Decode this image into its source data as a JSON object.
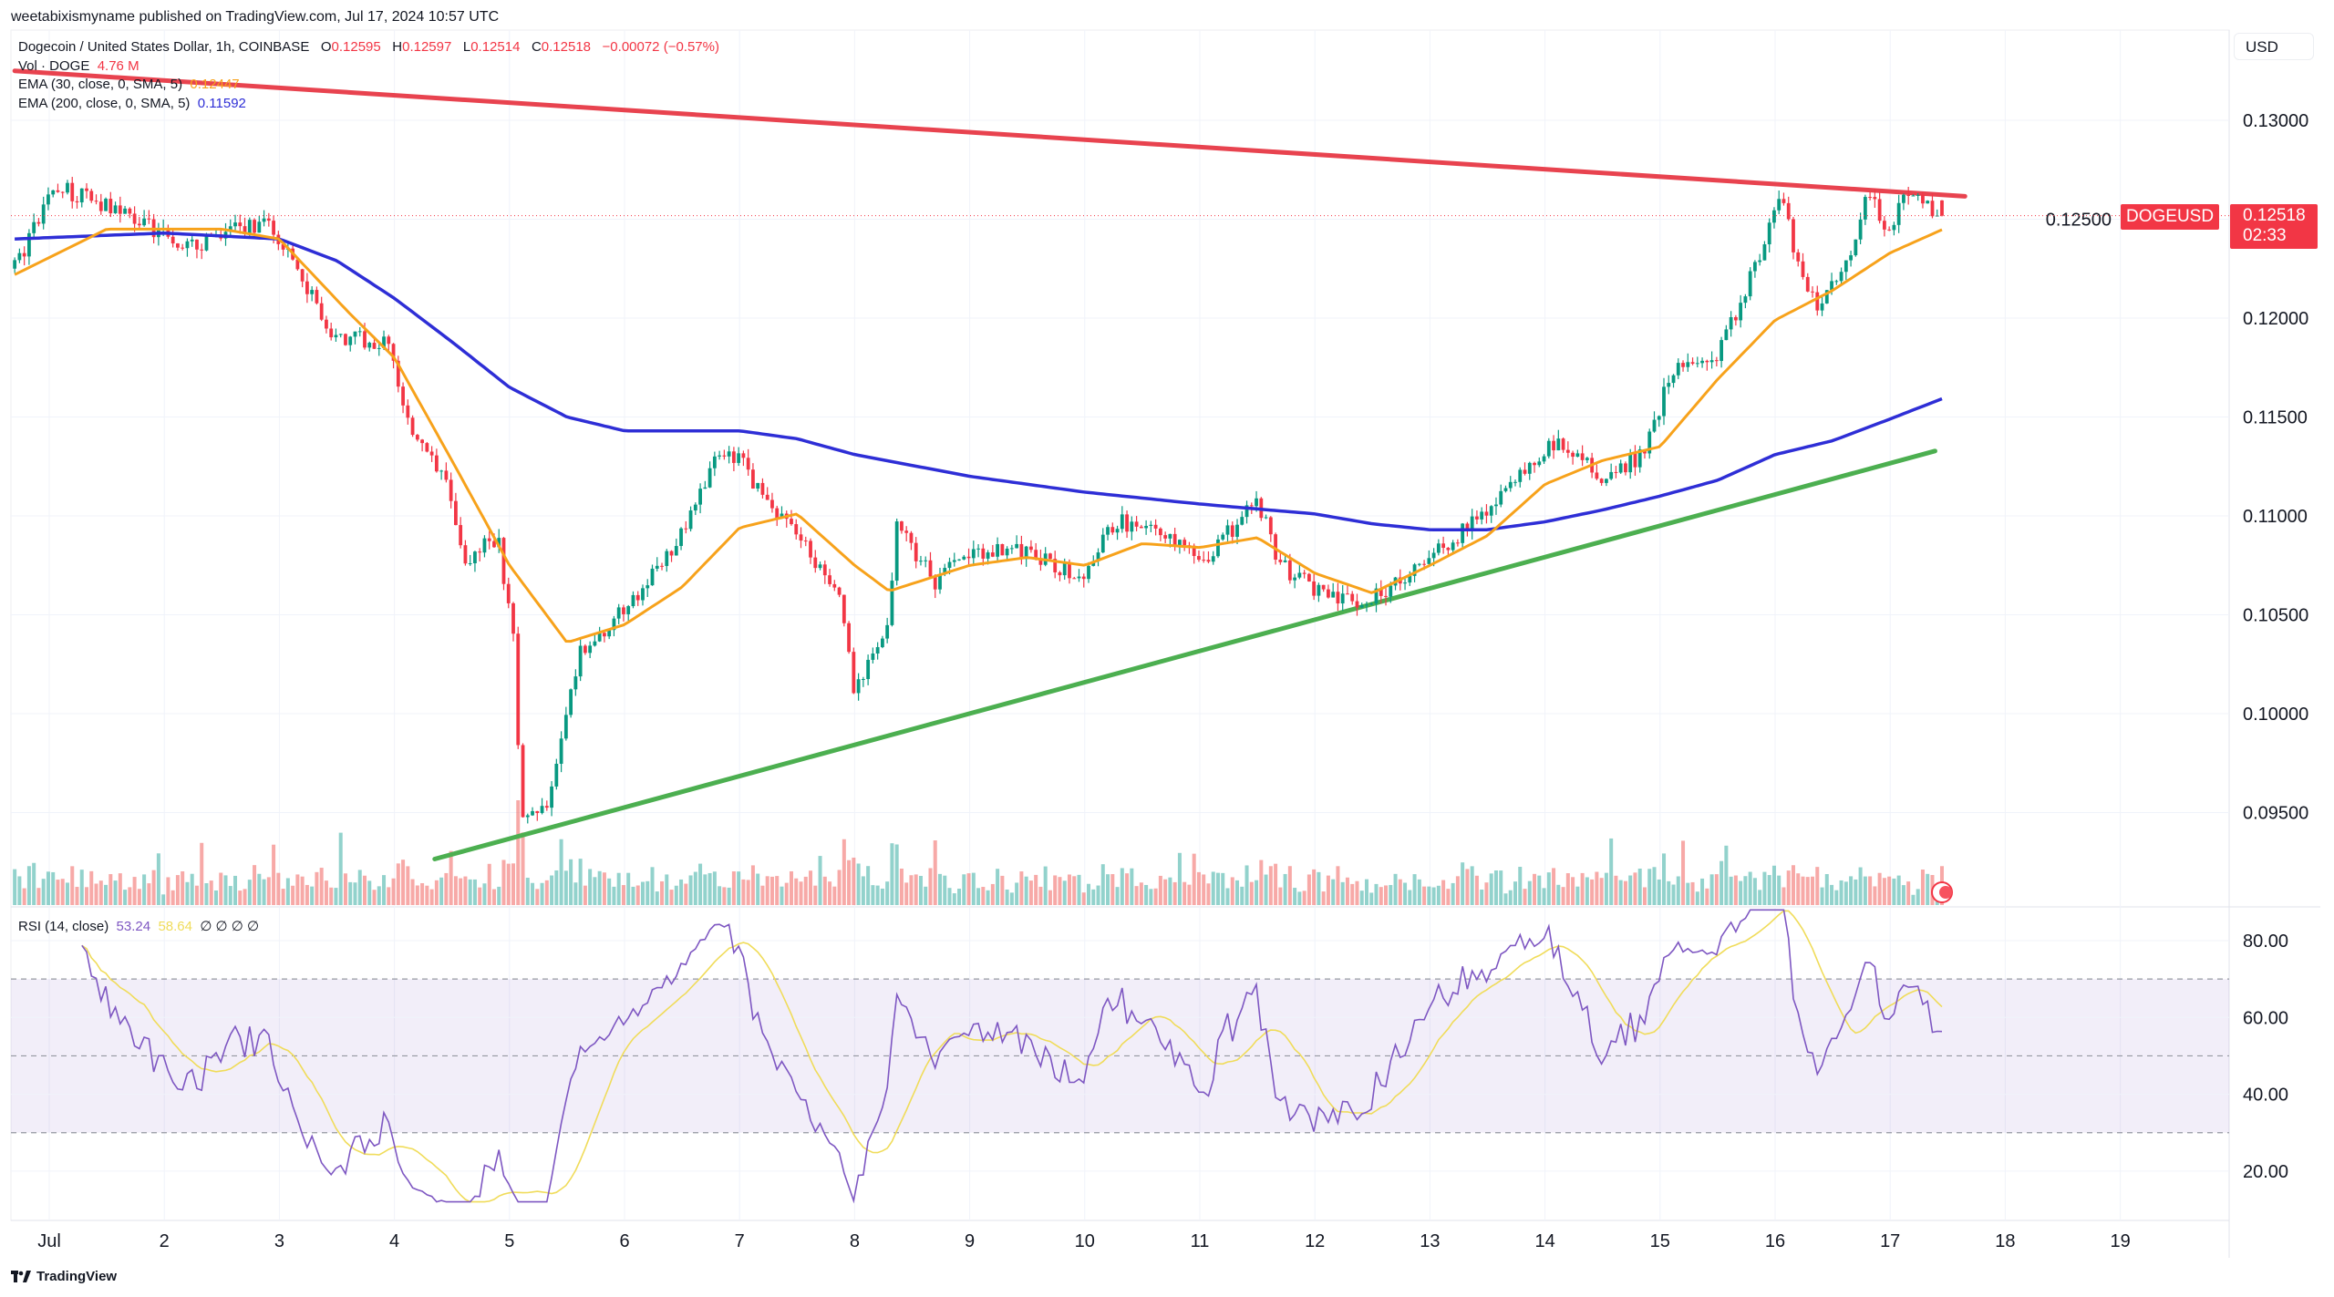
{
  "header": {
    "published": "weetabixismyname published on TradingView.com, Jul 17, 2024 10:57 UTC"
  },
  "legend": {
    "symbol": "Dogecoin / United States Dollar, 1h, COINBASE",
    "o_label": "O",
    "o": "0.12595",
    "h_label": "H",
    "h": "0.12597",
    "l_label": "L",
    "l": "0.12514",
    "c_label": "C",
    "c": "0.12518",
    "change": "−0.00072 (−0.57%)",
    "vol_label": "Vol · DOGE",
    "vol": "4.76 M",
    "ema30_label": "EMA (30, close, 0, SMA, 5)",
    "ema30": "0.12447",
    "ema200_label": "EMA (200, close, 0, SMA, 5)",
    "ema200": "0.11592"
  },
  "rsi_legend": {
    "label": "RSI (14, close)",
    "rsi": "53.24",
    "ma": "58.64",
    "extra": "∅ ∅ ∅ ∅"
  },
  "price_axis": {
    "currency": "USD",
    "last_price": "0.12518",
    "countdown": "02:33",
    "symbol_tag": "DOGEUSD"
  },
  "footer": {
    "brand": "TradingView"
  },
  "colors": {
    "up": "#089981",
    "down": "#f23645",
    "ema30": "#f7a21b",
    "ema200": "#2e2ed6",
    "resistance": "#e8434f",
    "support": "#4caf50",
    "rsi": "#7e57c2",
    "rsi_ma": "#f0dc5a"
  },
  "chart_data": {
    "type": "candlestick",
    "interval": "1h",
    "x_ticks": [
      {
        "day": 1,
        "label": "Jul"
      },
      {
        "day": 2,
        "label": "2"
      },
      {
        "day": 3,
        "label": "3"
      },
      {
        "day": 4,
        "label": "4"
      },
      {
        "day": 5,
        "label": "5"
      },
      {
        "day": 6,
        "label": "6"
      },
      {
        "day": 7,
        "label": "7"
      },
      {
        "day": 8,
        "label": "8"
      },
      {
        "day": 9,
        "label": "9"
      },
      {
        "day": 10,
        "label": "10"
      },
      {
        "day": 11,
        "label": "11"
      },
      {
        "day": 12,
        "label": "12"
      },
      {
        "day": 13,
        "label": "13"
      },
      {
        "day": 14,
        "label": "14"
      },
      {
        "day": 15,
        "label": "15"
      },
      {
        "day": 16,
        "label": "16"
      },
      {
        "day": 17,
        "label": "17"
      },
      {
        "day": 18,
        "label": "18"
      },
      {
        "day": 19,
        "label": "19"
      }
    ],
    "y_ticks": [
      "0.13000",
      "0.12500",
      "0.12000",
      "0.11500",
      "0.11000",
      "0.10500",
      "0.10000",
      "0.09500"
    ],
    "y_range": [
      0.0905,
      0.133
    ],
    "x_range_days": [
      0.65,
      20.2
    ],
    "price_path": [
      [
        0.7,
        0.1225
      ],
      [
        1.05,
        0.1267
      ],
      [
        1.7,
        0.1252
      ],
      [
        2.2,
        0.1236
      ],
      [
        2.9,
        0.125
      ],
      [
        3.2,
        0.1218
      ],
      [
        3.5,
        0.119
      ],
      [
        3.95,
        0.1188
      ],
      [
        4.1,
        0.1148
      ],
      [
        4.5,
        0.111
      ],
      [
        4.6,
        0.1075
      ],
      [
        4.9,
        0.109
      ],
      [
        5.05,
        0.103
      ],
      [
        5.1,
        0.0947
      ],
      [
        5.35,
        0.0955
      ],
      [
        5.6,
        0.103
      ],
      [
        6.0,
        0.1052
      ],
      [
        6.5,
        0.109
      ],
      [
        6.8,
        0.113
      ],
      [
        7.0,
        0.1128
      ],
      [
        7.3,
        0.1103
      ],
      [
        7.6,
        0.1082
      ],
      [
        7.9,
        0.1053
      ],
      [
        8.0,
        0.101
      ],
      [
        8.3,
        0.1045
      ],
      [
        8.35,
        0.1097
      ],
      [
        8.7,
        0.1067
      ],
      [
        9.0,
        0.1082
      ],
      [
        9.5,
        0.1082
      ],
      [
        10.0,
        0.1067
      ],
      [
        10.25,
        0.1097
      ],
      [
        10.7,
        0.1093
      ],
      [
        11.0,
        0.1075
      ],
      [
        11.5,
        0.1108
      ],
      [
        11.7,
        0.1075
      ],
      [
        12.1,
        0.106
      ],
      [
        12.45,
        0.1056
      ],
      [
        12.9,
        0.1075
      ],
      [
        13.3,
        0.1093
      ],
      [
        13.8,
        0.112
      ],
      [
        14.1,
        0.1139
      ],
      [
        14.5,
        0.112
      ],
      [
        14.85,
        0.1131
      ],
      [
        15.1,
        0.1173
      ],
      [
        15.5,
        0.118
      ],
      [
        15.9,
        0.1237
      ],
      [
        16.05,
        0.1263
      ],
      [
        16.2,
        0.1225
      ],
      [
        16.35,
        0.1207
      ],
      [
        16.6,
        0.1225
      ],
      [
        16.8,
        0.1263
      ],
      [
        17.0,
        0.1244
      ],
      [
        17.1,
        0.1263
      ],
      [
        17.45,
        0.12518
      ]
    ],
    "last_candle": {
      "o": 0.12595,
      "h": 0.12597,
      "l": 0.12514,
      "c": 0.12518
    },
    "ema30": [
      [
        0.7,
        0.1222
      ],
      [
        1.5,
        0.1245
      ],
      [
        2.5,
        0.1245
      ],
      [
        3.0,
        0.124
      ],
      [
        3.6,
        0.1203
      ],
      [
        4.0,
        0.118
      ],
      [
        4.5,
        0.1128
      ],
      [
        5.0,
        0.1075
      ],
      [
        5.5,
        0.1036
      ],
      [
        6.0,
        0.1045
      ],
      [
        6.5,
        0.1064
      ],
      [
        7.0,
        0.1094
      ],
      [
        7.5,
        0.1101
      ],
      [
        8.0,
        0.1075
      ],
      [
        8.3,
        0.1062
      ],
      [
        9.0,
        0.1075
      ],
      [
        9.5,
        0.1079
      ],
      [
        10.0,
        0.1075
      ],
      [
        10.5,
        0.1086
      ],
      [
        11.0,
        0.1084
      ],
      [
        11.5,
        0.1089
      ],
      [
        12.0,
        0.1071
      ],
      [
        12.5,
        0.1061
      ],
      [
        13.0,
        0.1075
      ],
      [
        13.5,
        0.109
      ],
      [
        14.0,
        0.1116
      ],
      [
        14.5,
        0.1128
      ],
      [
        15.0,
        0.1135
      ],
      [
        15.5,
        0.1169
      ],
      [
        16.0,
        0.1199
      ],
      [
        16.5,
        0.1214
      ],
      [
        17.0,
        0.1233
      ],
      [
        17.45,
        0.12447
      ]
    ],
    "ema200": [
      [
        0.7,
        0.124
      ],
      [
        2.0,
        0.1243
      ],
      [
        3.0,
        0.124
      ],
      [
        3.5,
        0.1229
      ],
      [
        4.0,
        0.121
      ],
      [
        4.5,
        0.1188
      ],
      [
        5.0,
        0.1165
      ],
      [
        5.5,
        0.115
      ],
      [
        6.0,
        0.1143
      ],
      [
        7.0,
        0.1143
      ],
      [
        7.5,
        0.1139
      ],
      [
        8.0,
        0.1131
      ],
      [
        9.0,
        0.112
      ],
      [
        10.0,
        0.1112
      ],
      [
        11.0,
        0.1106
      ],
      [
        12.0,
        0.1101
      ],
      [
        12.5,
        0.1096
      ],
      [
        13.0,
        0.1093
      ],
      [
        13.5,
        0.1093
      ],
      [
        14.0,
        0.1097
      ],
      [
        14.5,
        0.1103
      ],
      [
        15.0,
        0.111
      ],
      [
        15.5,
        0.1118
      ],
      [
        16.0,
        0.1131
      ],
      [
        16.5,
        0.1138
      ],
      [
        17.0,
        0.1149
      ],
      [
        17.45,
        0.11592
      ]
    ],
    "trendlines": [
      {
        "role": "resistance",
        "from": [
          0.7,
          0.1325
        ],
        "to": [
          17.65,
          0.12616
        ]
      },
      {
        "role": "support",
        "from": [
          4.35,
          0.09265
        ],
        "to": [
          17.39,
          0.11328
        ]
      }
    ],
    "rsi": {
      "period": 14,
      "levels": [
        70,
        50,
        30
      ],
      "y_ticks": [
        "80.00",
        "60.00",
        "40.00",
        "20.00"
      ],
      "y_range": [
        12,
        88
      ]
    }
  }
}
